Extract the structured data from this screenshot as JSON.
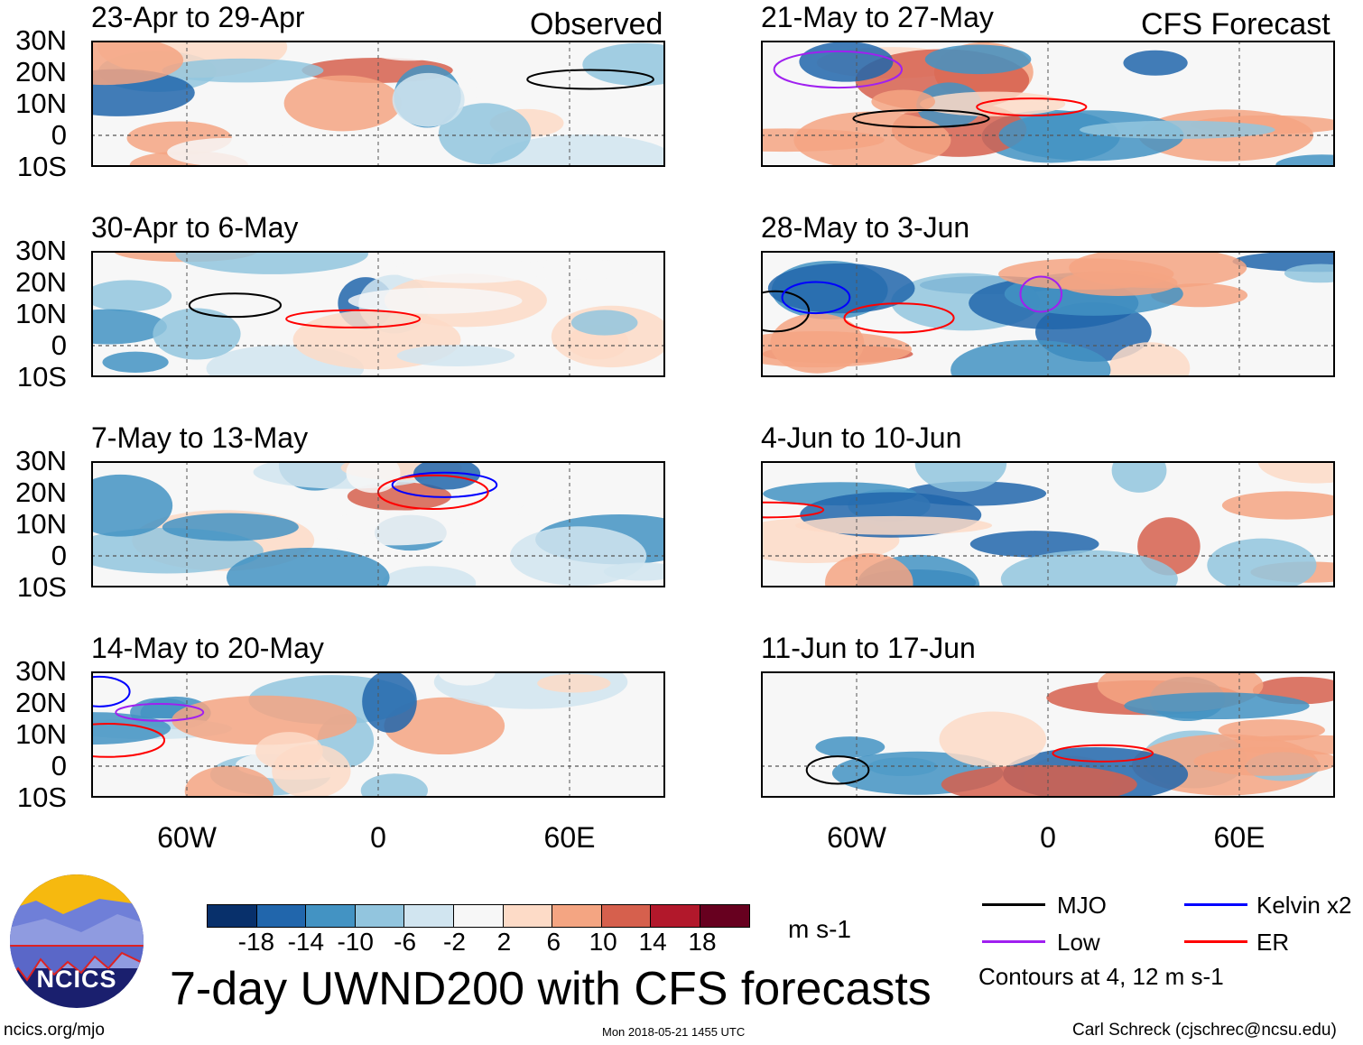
{
  "header": {
    "observed_label": "Observed",
    "forecast_label": "CFS Forecast"
  },
  "panels_observed": [
    {
      "title": "23-Apr to 29-Apr"
    },
    {
      "title": "30-Apr to 6-May"
    },
    {
      "title": "7-May to 13-May"
    },
    {
      "title": "14-May to 20-May"
    }
  ],
  "panels_forecast": [
    {
      "title": "21-May to 27-May"
    },
    {
      "title": "28-May to 3-Jun"
    },
    {
      "title": "4-Jun to 10-Jun"
    },
    {
      "title": "11-Jun to 17-Jun"
    }
  ],
  "chart_data": {
    "type": "heatmap",
    "title": "7-day UWND200 with CFS forecasts",
    "variable": "200-hPa zonal wind",
    "units": "m s-1",
    "lat_ticks": [
      "30N",
      "20N",
      "10N",
      "0",
      "10S"
    ],
    "lat_range": [
      -10,
      30
    ],
    "lon_ticks": [
      "60W",
      "0",
      "60E"
    ],
    "lon_range": [
      -90,
      90
    ],
    "colorbar": {
      "levels": [
        "-18",
        "-14",
        "-10",
        "-6",
        "-2",
        "2",
        "6",
        "10",
        "14",
        "18"
      ],
      "colors": [
        "#08306b",
        "#2166ac",
        "#4393c3",
        "#92c5de",
        "#d1e5f0",
        "#f7f7f7",
        "#fddbc7",
        "#f4a582",
        "#d6604d",
        "#b2182b",
        "#67001f"
      ]
    },
    "legend": [
      {
        "label": "MJO",
        "color": "#000000"
      },
      {
        "label": "Kelvin x2",
        "color": "#0000ff"
      },
      {
        "label": "Low",
        "color": "#a020f0"
      },
      {
        "label": "ER",
        "color": "#ff0000"
      }
    ],
    "contour_note": "Contours at 4, 12 m s-1"
  },
  "footer": {
    "logo_text": "NCICS",
    "url": "ncics.org/mjo",
    "timestamp": "Mon 2018-05-21 1455 UTC",
    "credit": "Carl Schreck (cjschrec@ncsu.edu)"
  }
}
